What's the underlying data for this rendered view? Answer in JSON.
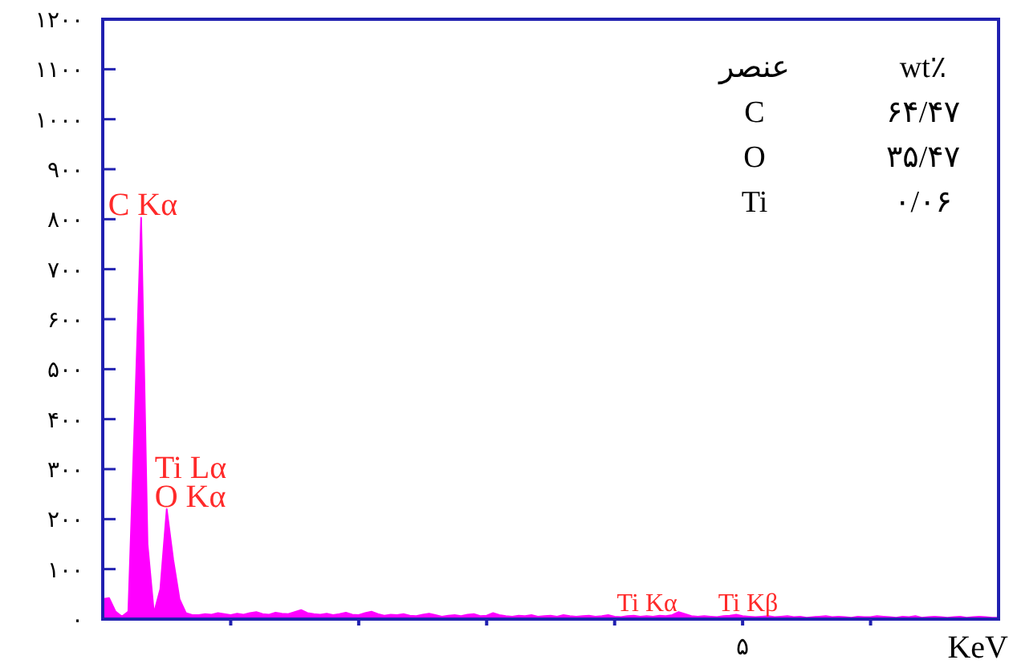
{
  "chart_data": {
    "type": "area",
    "xlabel": "KeV",
    "categories": [
      null,
      null,
      null,
      null,
      null,
      null,
      null,
      null,
      null,
      null,
      null,
      null,
      null,
      null,
      null,
      null,
      null,
      null,
      null,
      null,
      null,
      null,
      null,
      null,
      null,
      null,
      null,
      null,
      null,
      null,
      null,
      null,
      null,
      null,
      null,
      null,
      null,
      null,
      null,
      null,
      null,
      null,
      null,
      null,
      null,
      null,
      null,
      null,
      null,
      null,
      null,
      null,
      null,
      null,
      null,
      null,
      null,
      null,
      null,
      null,
      null,
      null,
      null,
      null,
      null,
      null,
      null,
      null,
      null,
      null,
      null,
      null,
      null,
      null,
      null,
      null,
      null,
      null,
      null,
      null,
      null,
      null,
      null,
      null,
      null,
      null,
      null,
      null,
      null,
      null,
      null,
      null,
      null,
      null,
      null,
      null,
      null,
      null,
      null,
      null,
      null,
      null,
      null,
      null,
      null,
      null,
      null,
      null,
      null,
      null,
      null,
      null,
      null,
      null,
      null,
      null,
      null,
      null,
      null,
      null,
      null,
      null,
      null,
      null,
      null,
      null,
      null,
      null,
      null,
      null,
      null,
      null,
      null,
      null,
      null,
      null,
      null,
      null,
      null,
      null,
      null
    ],
    "series": [
      {
        "color": "#ff00ff",
        "values": [
          40,
          42,
          15,
          5,
          15,
          400,
          803,
          150,
          12,
          60,
          220,
          120,
          40,
          12,
          8,
          8,
          10,
          9,
          12,
          10,
          8,
          11,
          9,
          12,
          14,
          10,
          9,
          13,
          11,
          10,
          14,
          18,
          12,
          10,
          9,
          11,
          8,
          10,
          13,
          9,
          8,
          12,
          15,
          10,
          7,
          9,
          8,
          10,
          7,
          6,
          9,
          11,
          8,
          5,
          7,
          8,
          6,
          9,
          10,
          6,
          7,
          12,
          8,
          6,
          5,
          7,
          6,
          8,
          5,
          6,
          7,
          5,
          8,
          6,
          5,
          6,
          7,
          5,
          6,
          8,
          5,
          4,
          6,
          7,
          5,
          6,
          5,
          7,
          6,
          8,
          14,
          10,
          6,
          5,
          6,
          5,
          4,
          6,
          7,
          9,
          6,
          5,
          4,
          5,
          6,
          4,
          5,
          6,
          4,
          5,
          3,
          4,
          5,
          6,
          4,
          5,
          4,
          3,
          5,
          4,
          4,
          6,
          5,
          4,
          3,
          5,
          4,
          6,
          3,
          4,
          5,
          4,
          3,
          4,
          5,
          3,
          4,
          5,
          4,
          3,
          3
        ]
      }
    ],
    "ylim": [
      0,
      1200
    ],
    "yticks": [
      {
        "value": 0,
        "label": "۰"
      },
      {
        "value": 100,
        "label": "۱۰۰"
      },
      {
        "value": 200,
        "label": "۲۰۰"
      },
      {
        "value": 300,
        "label": "۳۰۰"
      },
      {
        "value": 400,
        "label": "۴۰۰"
      },
      {
        "value": 500,
        "label": "۵۰۰"
      },
      {
        "value": 600,
        "label": "۶۰۰"
      },
      {
        "value": 700,
        "label": "۷۰۰"
      },
      {
        "value": 800,
        "label": "۸۰۰"
      },
      {
        "value": 900,
        "label": "۹۰۰"
      },
      {
        "value": 1000,
        "label": "۱۰۰۰"
      },
      {
        "value": 1100,
        "label": "۱۱۰۰"
      },
      {
        "value": 1200,
        "label": "۱۲۰۰"
      }
    ],
    "annotations": [
      "C Kα",
      "Ti Lα",
      "O Kα",
      "Ti Kα",
      "Ti Kβ",
      "۵",
      "عنصر",
      "wt٪",
      "C",
      "۶۴/۴۷",
      "O",
      "۳۵/۴۷",
      "Ti",
      "۰/۰۶"
    ]
  }
}
